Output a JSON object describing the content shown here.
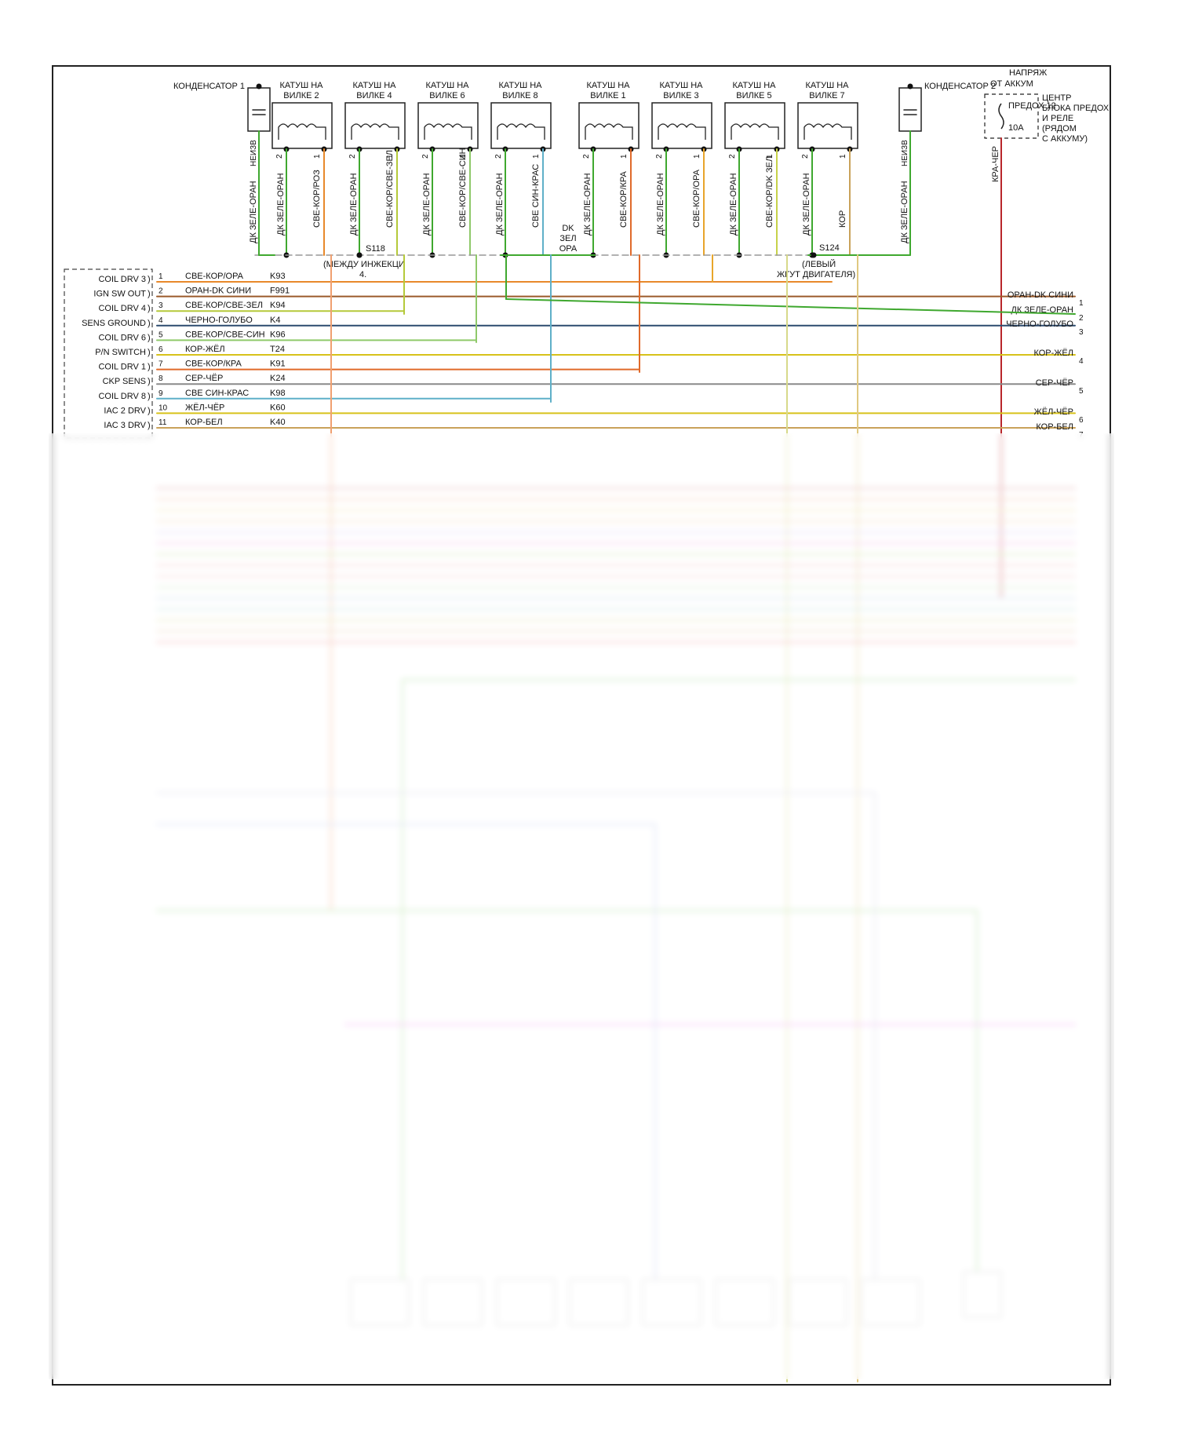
{
  "coils": [
    {
      "label": "КАТУШ НА ВИЛКЕ 2",
      "w2": "ДК ЗЕЛЕ-ОРАН",
      "w1": "СВЕ-КОР/РОЗ"
    },
    {
      "label": "КАТУШ НА ВИЛКЕ 4",
      "w2": "ДК ЗЕЛЕ-ОРАН",
      "w1": "СВЕ-КОР/СВЕ-ЗЕЛ"
    },
    {
      "label": "КАТУШ НА ВИЛКЕ 6",
      "w2": "ДК ЗЕЛЕ-ОРАН",
      "w1": "СВЕ-КОР/СВЕ-СИН"
    },
    {
      "label": "КАТУШ НА ВИЛКЕ 8",
      "w2": "ДК ЗЕЛЕ-ОРАН",
      "w1": "СВЕ СИН-КРАС"
    },
    {
      "label": "КАТУШ НА ВИЛКЕ 1",
      "w2": "ДК ЗЕЛЕ-ОРАН",
      "w1": "СВЕ-КОР/КРА"
    },
    {
      "label": "КАТУШ НА ВИЛКЕ 3",
      "w2": "ДК ЗЕЛЕ-ОРАН",
      "w1": "СВЕ-КОР/ОРА"
    },
    {
      "label": "КАТУШ НА ВИЛКЕ 5",
      "w2": "ДК ЗЕЛЕ-ОРАН",
      "w1": "СВЕ-КОР/DK ЗЕЛ"
    },
    {
      "label": "КАТУШ НА ВИЛКЕ 7",
      "w2": "ДК ЗЕЛЕ-ОРАН",
      "w1": "КОР"
    }
  ],
  "capacitors": {
    "left": {
      "label": "КОНДЕНСАТОР 1",
      "wire_tag": "НЕИЗВ",
      "wire": "ДК ЗЕЛЕ-ОРАН"
    },
    "right": {
      "label": "КОНДЕНСАТОР 2",
      "wire_tag": "НЕИЗВ",
      "wire": "ДК ЗЕЛЕ-ОРАН"
    }
  },
  "fuse": {
    "supply": "НАПРЯЖ ОТ АККУМ",
    "name": "ПРЕДОХ 12",
    "rating": "10A",
    "location": [
      "ЦЕНТР",
      "БЛОКА ПРЕДОХ",
      "И РЕЛЕ",
      "(РЯДОМ",
      "С АККУМУ)"
    ],
    "wire": "КРА-ЧЕР"
  },
  "splices": {
    "s118": "S118",
    "s118_note": [
      "(МЕЖДУ ИНЖЕКЦИ",
      "4."
    ],
    "s124": "S124",
    "s124_note": [
      "(ЛЕВЫЙ",
      "ЖГУТ ДВИГАТЕЛЯ)"
    ],
    "mid_wire": [
      "DK",
      "ЗЕЛ",
      "ОРА"
    ]
  },
  "pcm_pins": [
    {
      "pin": "1",
      "signal": "COIL DRV 3",
      "color": "СВЕ-КОР/ОРА",
      "circuit": "K93"
    },
    {
      "pin": "2",
      "signal": "IGN SW OUT",
      "color": "ОРАН-DK СИНИ",
      "circuit": "F991"
    },
    {
      "pin": "3",
      "signal": "COIL DRV 4",
      "color": "СВЕ-КОР/СВЕ-ЗЕЛ",
      "circuit": "K94"
    },
    {
      "pin": "4",
      "signal": "SENS GROUND",
      "color": "ЧЕРНО-ГОЛУБО",
      "circuit": "K4"
    },
    {
      "pin": "5",
      "signal": "COIL DRV 6",
      "color": "СВЕ-КОР/СВЕ-СИН",
      "circuit": "K96"
    },
    {
      "pin": "6",
      "signal": "P/N SWITCH",
      "color": "КОР-ЖЁЛ",
      "circuit": "T24"
    },
    {
      "pin": "7",
      "signal": "COIL DRV 1",
      "color": "СВЕ-КОР/КРА",
      "circuit": "K91"
    },
    {
      "pin": "8",
      "signal": "CKP SENS",
      "color": "СЕР-ЧЁР",
      "circuit": "K24"
    },
    {
      "pin": "9",
      "signal": "COIL DRV 8",
      "color": "СВЕ СИН-КРАС",
      "circuit": "K98"
    },
    {
      "pin": "10",
      "signal": "IAC 2 DRV",
      "color": "ЖЁЛ-ЧЁР",
      "circuit": "K60"
    },
    {
      "pin": "11",
      "signal": "IAC 3 DRV",
      "color": "КОР-БЕЛ",
      "circuit": "K40"
    }
  ],
  "right_outputs": [
    {
      "label": "ОРАН-DK СИНИ",
      "num": "1"
    },
    {
      "label": "ДК ЗЕЛЕ-ОРАН",
      "num": "2"
    },
    {
      "label": "ЧЕРНО-ГОЛУБО",
      "num": "3"
    },
    {
      "label": "КОР-ЖЁЛ",
      "num": "4"
    },
    {
      "label": "СЕР-ЧЁР",
      "num": "5"
    },
    {
      "label": "ЖЁЛ-ЧЁР",
      "num": "6"
    },
    {
      "label": "КОР-БЕЛ",
      "num": "7"
    }
  ],
  "colors": {
    "frame": "#222222",
    "ground_green": "#3fa82f",
    "orange": "#e8892b",
    "yellow_green": "#b5c93a",
    "sky_blue": "#5fb0c8",
    "brown": "#9a5a2a",
    "red": "#b8262a",
    "black_blue": "#2c4a6e",
    "grey": "#8a8a8a",
    "yellow": "#d7c21a",
    "tan": "#c9a25a"
  }
}
